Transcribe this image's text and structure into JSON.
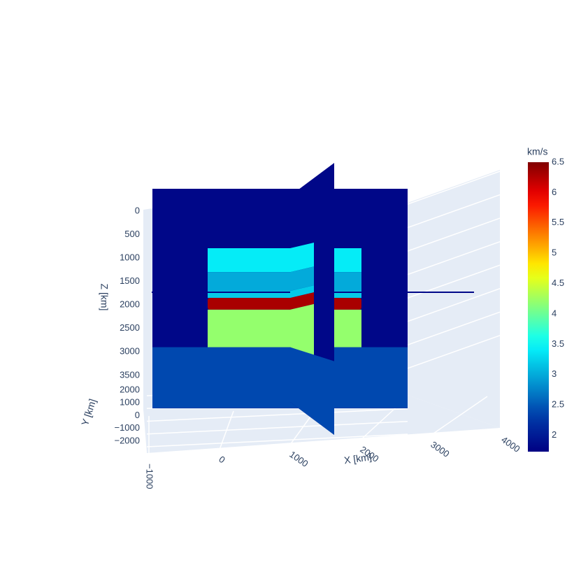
{
  "chart_data": {
    "type": "slice3d",
    "xaxis_title": "X [km]",
    "yaxis_title": "Y [km]",
    "zaxis_title": "Z [km]",
    "xticks": [
      {
        "value": -1000,
        "label": "−1000"
      },
      0,
      1000,
      2000,
      3000,
      4000
    ],
    "yticks": [
      2000,
      1000,
      0,
      {
        "value": -1000,
        "label": "−1000"
      },
      {
        "value": -2000,
        "label": "−2000"
      }
    ],
    "zticks": [
      0,
      500,
      1000,
      1500,
      2000,
      2500,
      3000,
      3500
    ],
    "colorscale": "Jet",
    "colorbar": {
      "title": "km/s",
      "ticks": [
        2,
        2.5,
        3,
        3.5,
        4,
        4.5,
        5,
        5.5,
        6,
        6.5
      ],
      "range": [
        1.73,
        6.5
      ]
    },
    "background_velocity": 1.8,
    "layers": [
      {
        "top": 790,
        "bottom": 1300,
        "velocity": 3.4
      },
      {
        "top": 1300,
        "bottom": 1700,
        "velocity": 3.0
      },
      {
        "top": 1700,
        "bottom": 1850,
        "velocity": 3.2
      },
      {
        "top": 1850,
        "bottom": 2100,
        "velocity": 6.3
      },
      {
        "top": 2100,
        "bottom": 2900,
        "velocity": 4.2
      }
    ],
    "bottom_layer": {
      "top": 2900,
      "bottom": 4200,
      "velocity": 2.4
    }
  }
}
